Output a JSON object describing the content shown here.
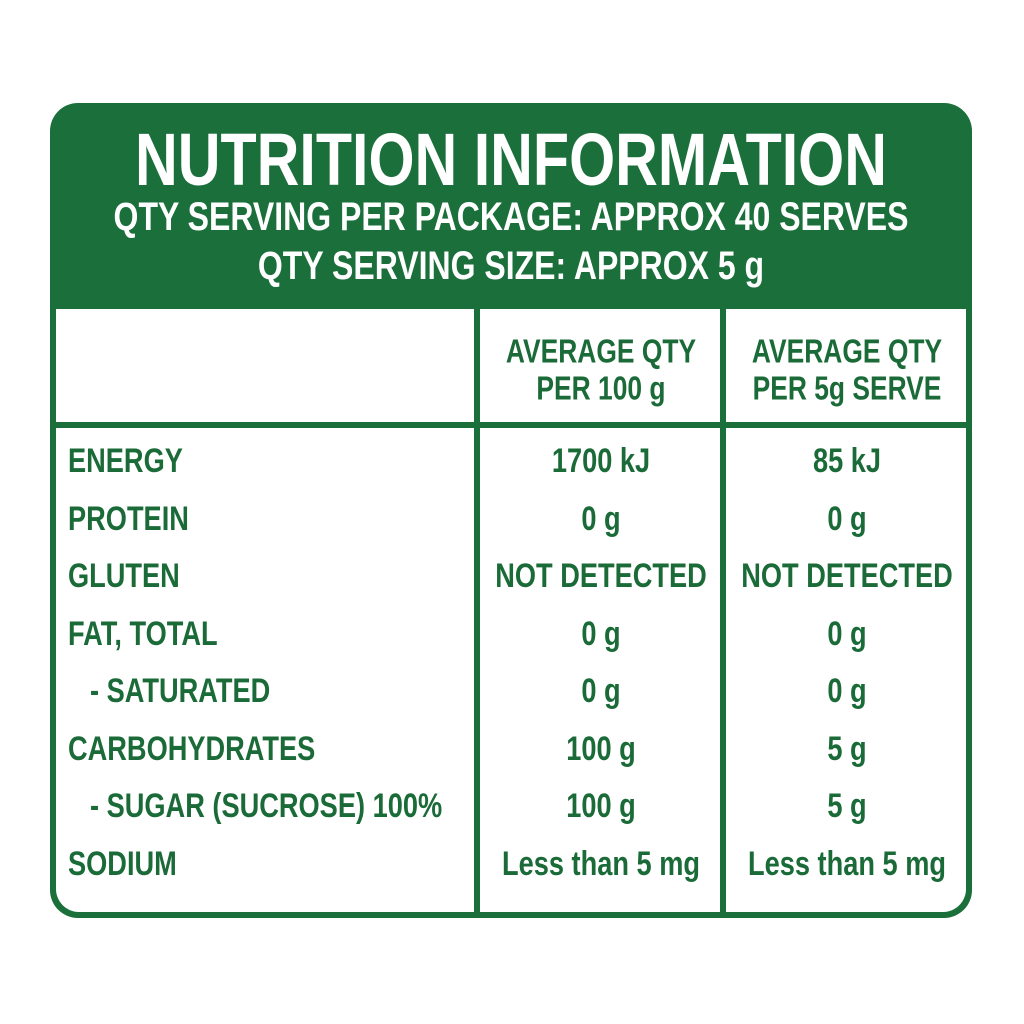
{
  "header": {
    "title": "NUTRITION INFORMATION",
    "servings_per_package": "QTY SERVING PER PACKAGE: APPROX 40 SERVES",
    "serving_size": "QTY SERVING SIZE: APPROX 5 g"
  },
  "table": {
    "columns": [
      [
        "AVERAGE QTY",
        "PER 100 g"
      ],
      [
        "AVERAGE QTY",
        "PER 5g SERVE"
      ]
    ],
    "rows": [
      [
        "ENERGY",
        "1700 kJ",
        "85 kJ"
      ],
      [
        "PROTEIN",
        "0 g",
        "0 g"
      ],
      [
        "GLUTEN",
        "NOT DETECTED",
        "NOT DETECTED"
      ],
      [
        "FAT, TOTAL",
        "0 g",
        "0 g"
      ],
      [
        "- SATURATED",
        "0 g",
        "0 g"
      ],
      [
        "CARBOHYDRATES",
        "100 g",
        "5 g"
      ],
      [
        "- SUGAR (SUCROSE) 100%",
        "100 g",
        "5 g"
      ],
      [
        "SODIUM",
        "Less than 5 mg",
        "Less than 5 mg"
      ]
    ]
  }
}
